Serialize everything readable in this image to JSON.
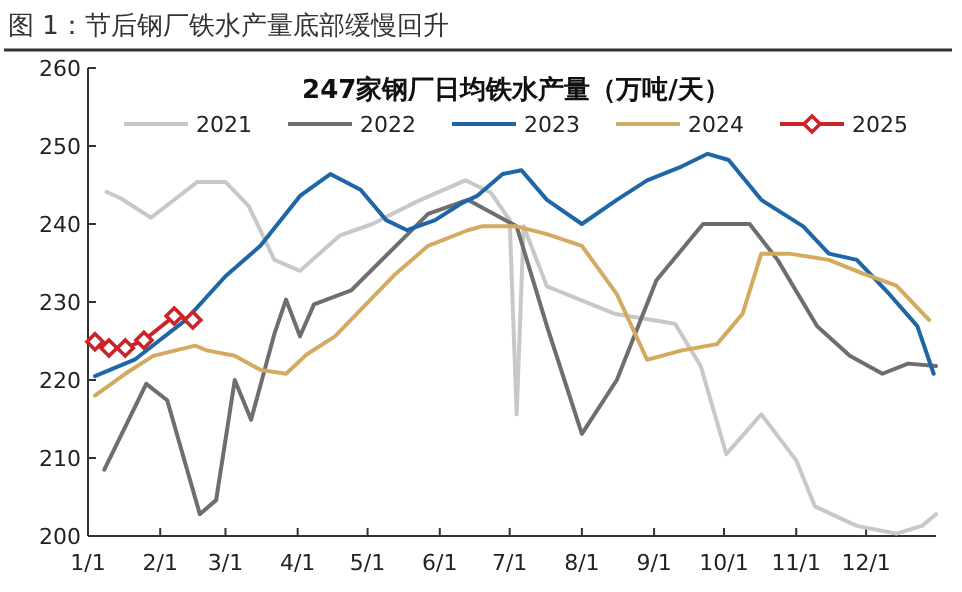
{
  "chart_data": {
    "type": "line",
    "title": "图 1：节后钢厂铁水产量底部缓慢回升",
    "subtitle": "247家钢厂日均铁水产量（万吨/天）",
    "xlim": [
      "--01-01",
      "--12-31"
    ],
    "xticks": [
      {
        "value": "--01-01",
        "label": "1/1"
      },
      {
        "value": "--02-01",
        "label": "2/1"
      },
      {
        "value": "--03-01",
        "label": "3/1"
      },
      {
        "value": "--04-01",
        "label": "4/1"
      },
      {
        "value": "--05-01",
        "label": "5/1"
      },
      {
        "value": "--06-01",
        "label": "6/1"
      },
      {
        "value": "--07-01",
        "label": "7/1"
      },
      {
        "value": "--08-01",
        "label": "8/1"
      },
      {
        "value": "--09-01",
        "label": "9/1"
      },
      {
        "value": "--10-01",
        "label": "10/1"
      },
      {
        "value": "--11-01",
        "label": "11/1"
      },
      {
        "value": "--12-01",
        "label": "12/1"
      }
    ],
    "ylim": [
      200,
      260
    ],
    "yticks": [
      200,
      210,
      220,
      230,
      240,
      250,
      260
    ],
    "grid": false,
    "legend": "top",
    "line_style": "solid",
    "series": [
      {
        "name": "2021",
        "color": "#c8c8c8",
        "marker": "none",
        "x": [
          "--01-09",
          "--01-15",
          "--01-28",
          "--02-17",
          "--03-01",
          "--03-11",
          "--03-22",
          "--04-02",
          "--04-19",
          "--05-03",
          "--05-23",
          "--06-12",
          "--06-23",
          "--07-01",
          "--07-04",
          "--07-07",
          "--07-17",
          "--08-15",
          "--09-10",
          "--09-21",
          "--10-02",
          "--10-17",
          "--11-01",
          "--11-09",
          "--11-27",
          "--12-14",
          "--12-25",
          "--12-31"
        ],
        "values": [
          244.1,
          243.3,
          240.8,
          245.4,
          245.4,
          242.3,
          235.4,
          234,
          238.5,
          240,
          243,
          245.6,
          244,
          240.5,
          215.6,
          239.7,
          232,
          228.5,
          227.2,
          221.8,
          210.5,
          215.6,
          209.7,
          203.8,
          201.3,
          200.3,
          201.3,
          202.8
        ]
      },
      {
        "name": "2022",
        "color": "#6e6e6e",
        "marker": "none",
        "x": [
          "--01-08",
          "--01-26",
          "--02-04",
          "--02-18",
          "--02-25",
          "--03-05",
          "--03-12",
          "--03-22",
          "--03-27",
          "--04-02",
          "--04-08",
          "--04-24",
          "--05-27",
          "--06-13",
          "--07-04",
          "--07-17",
          "--08-01",
          "--08-16",
          "--09-02",
          "--09-22",
          "--10-12",
          "--10-24",
          "--11-10",
          "--11-24",
          "--12-08",
          "--12-19",
          "--12-31"
        ],
        "values": [
          208.5,
          219.5,
          217.4,
          202.8,
          204.6,
          220,
          214.9,
          225.9,
          230.3,
          225.6,
          229.7,
          231.5,
          241.3,
          243.1,
          239.7,
          226.9,
          213.1,
          220,
          232.8,
          240,
          240,
          235.4,
          226.9,
          223.1,
          220.8,
          222.1,
          221.8
        ]
      },
      {
        "name": "2023",
        "color": "#1f66a8",
        "marker": "none",
        "x": [
          "--01-04",
          "--01-21",
          "--02-12",
          "--03-01",
          "--03-16",
          "--04-02",
          "--04-15",
          "--04-28",
          "--05-09",
          "--05-18",
          "--05-30",
          "--06-10",
          "--06-17",
          "--06-28",
          "--07-06",
          "--07-17",
          "--08-01",
          "--08-16",
          "--08-29",
          "--09-13",
          "--09-24",
          "--10-03",
          "--10-17",
          "--11-04",
          "--11-15",
          "--11-27",
          "--12-11",
          "--12-23",
          "--12-30"
        ],
        "values": [
          220.5,
          222.6,
          227.7,
          233.3,
          237.2,
          243.6,
          246.4,
          244.4,
          240.5,
          239.2,
          240.5,
          242.6,
          243.6,
          246.4,
          246.9,
          243.1,
          240,
          243.1,
          245.6,
          247.4,
          249,
          248.2,
          243.1,
          239.7,
          236.2,
          235.4,
          231,
          226.9,
          220.8
        ]
      },
      {
        "name": "2024",
        "color": "#d4aa60",
        "marker": "none",
        "x": [
          "--01-04",
          "--01-17",
          "--01-29",
          "--02-16",
          "--02-21",
          "--03-05",
          "--03-16",
          "--03-27",
          "--04-05",
          "--04-17",
          "--04-28",
          "--05-13",
          "--05-27",
          "--06-13",
          "--06-19",
          "--07-04",
          "--07-17",
          "--08-01",
          "--08-16",
          "--08-29",
          "--09-13",
          "--09-28",
          "--10-09",
          "--10-17",
          "--10-29",
          "--11-15",
          "--11-30",
          "--12-14",
          "--12-28"
        ],
        "values": [
          218,
          220.8,
          223.1,
          224.4,
          223.8,
          223.1,
          221.3,
          220.8,
          223.3,
          225.6,
          229,
          233.6,
          237.2,
          239.2,
          239.7,
          239.7,
          238.7,
          237.2,
          231,
          222.6,
          223.8,
          224.6,
          228.5,
          236.2,
          236.2,
          235.4,
          233.6,
          232.1,
          227.7
        ]
      },
      {
        "name": "2025",
        "color": "#cc2229",
        "marker": "diamond",
        "x": [
          "--01-04",
          "--01-10",
          "--01-17",
          "--01-25",
          "--02-07",
          "--02-15"
        ],
        "values": [
          224.9,
          224.1,
          224.1,
          225.1,
          228.2,
          227.7
        ]
      }
    ]
  }
}
